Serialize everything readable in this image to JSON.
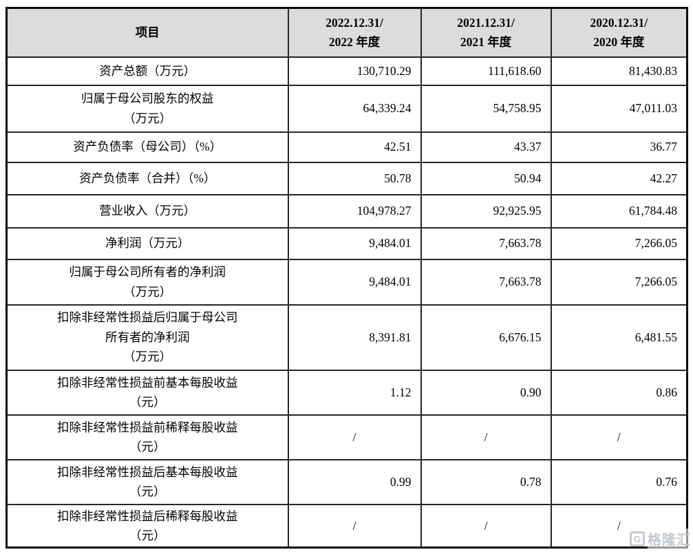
{
  "table": {
    "header": {
      "item_label": "项目",
      "periods": [
        {
          "line1": "2022.12.31/",
          "line2": "2022 年度"
        },
        {
          "line1": "2021.12.31/",
          "line2": "2021 年度"
        },
        {
          "line1": "2020.12.31/",
          "line2": "2020 年度"
        }
      ]
    },
    "rows": [
      {
        "label": "资产总额（万元）",
        "values": [
          "130,710.29",
          "111,618.60",
          "81,430.83"
        ]
      },
      {
        "label": "归属于母公司股东的权益\n（万元）",
        "values": [
          "64,339.24",
          "54,758.95",
          "47,011.03"
        ]
      },
      {
        "label": "资产负债率（母公司）（%）",
        "values": [
          "42.51",
          "43.37",
          "36.77"
        ]
      },
      {
        "label": "资产负债率（合并）（%）",
        "values": [
          "50.78",
          "50.94",
          "42.27"
        ]
      },
      {
        "label": "营业收入（万元）",
        "values": [
          "104,978.27",
          "92,925.95",
          "61,784.48"
        ]
      },
      {
        "label": "净利润（万元）",
        "values": [
          "9,484.01",
          "7,663.78",
          "7,266.05"
        ]
      },
      {
        "label": "归属于母公司所有者的净利润\n（万元）",
        "values": [
          "9,484.01",
          "7,663.78",
          "7,266.05"
        ]
      },
      {
        "label": "扣除非经常性损益后归属于母公司\n所有者的净利润\n（万元）",
        "values": [
          "8,391.81",
          "6,676.15",
          "6,481.55"
        ]
      },
      {
        "label": "扣除非经常性损益前基本每股收益\n（元）",
        "values": [
          "1.12",
          "0.90",
          "0.86"
        ]
      },
      {
        "label": "扣除非经常性损益前稀释每股收益\n（元）",
        "values": [
          "/",
          "/",
          "/"
        ]
      },
      {
        "label": "扣除非经常性损益后基本每股收益\n（元）",
        "values": [
          "0.99",
          "0.78",
          "0.76"
        ]
      },
      {
        "label": "扣除非经常性损益后稀释每股收益\n（元）",
        "values": [
          "/",
          "/",
          "/"
        ]
      }
    ]
  },
  "watermark": {
    "logo_letter": "G",
    "brand": "格隆汇"
  },
  "colors": {
    "header_bg": "#dcdcdc",
    "outer_border": "#0a0a0a",
    "inner_border": "#262626",
    "text": "#000000",
    "watermark": "#c2c7cd"
  }
}
